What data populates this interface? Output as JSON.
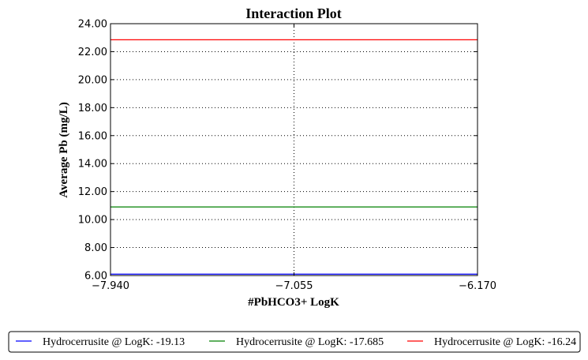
{
  "chart_data": {
    "type": "line",
    "title": "Interaction Plot",
    "xlabel": "#PbHCO3+ LogK",
    "ylabel": "Average Pb (mg/L)",
    "x": [
      -7.94,
      -7.055,
      -6.17
    ],
    "xticks": [
      -7.94,
      -7.055,
      -6.17
    ],
    "xtick_labels": [
      "−7.940",
      "−7.055",
      "−6.170"
    ],
    "xlim": [
      -7.94,
      -6.17
    ],
    "ylim": [
      6.0,
      24.0
    ],
    "yticks": [
      6,
      8,
      10,
      12,
      14,
      16,
      18,
      20,
      22,
      24
    ],
    "ytick_labels": [
      "6.00",
      "8.00",
      "10.00",
      "12.00",
      "14.00",
      "16.00",
      "18.00",
      "20.00",
      "22.00",
      "24.00"
    ],
    "grid": true,
    "legend_position": "bottom",
    "series": [
      {
        "name": "Hydrocerrusite @ LogK: -19.13",
        "color": "#0000ff",
        "values": [
          6.1,
          6.1,
          6.1
        ]
      },
      {
        "name": "Hydrocerrusite @ LogK: -17.685",
        "color": "#008000",
        "values": [
          10.9,
          10.9,
          10.9
        ]
      },
      {
        "name": "Hydrocerrusite @ LogK: -16.24",
        "color": "#ff0000",
        "values": [
          22.85,
          22.85,
          22.85
        ]
      }
    ]
  }
}
